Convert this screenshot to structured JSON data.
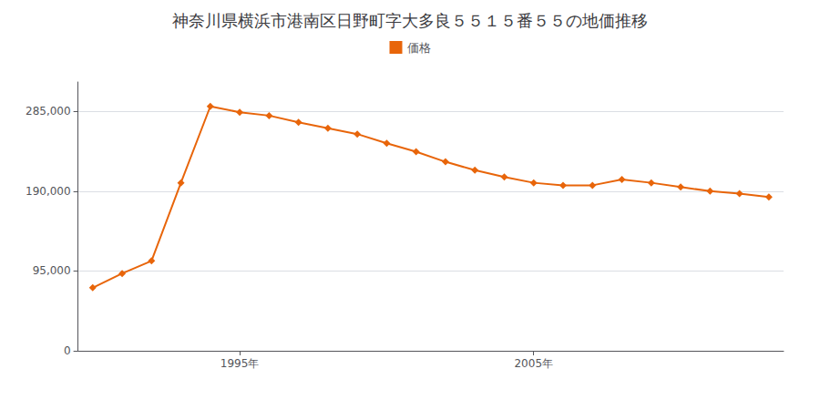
{
  "chart_data": {
    "type": "line",
    "title": "神奈川県横浜市港南区日野町字大多良５５１５番５５の地価推移",
    "x": [
      1990,
      1991,
      1992,
      1993,
      1994,
      1995,
      1996,
      1997,
      1998,
      1999,
      2000,
      2001,
      2002,
      2003,
      2004,
      2005,
      2006,
      2007,
      2008,
      2009,
      2010,
      2011,
      2012,
      2013
    ],
    "series": [
      {
        "name": "価格",
        "color": "#E8650A",
        "marker": "diamond",
        "values": [
          75000,
          92000,
          107000,
          200000,
          291000,
          284000,
          280000,
          272000,
          265000,
          258000,
          247000,
          237000,
          225000,
          215000,
          207000,
          200000,
          197000,
          197000,
          204000,
          200000,
          195000,
          190000,
          187000,
          183000
        ]
      }
    ],
    "xlim": [
      1989.5,
      2013.5
    ],
    "xticks": [
      {
        "value": 1995,
        "label": "1995年"
      },
      {
        "value": 2005,
        "label": "2005年"
      }
    ],
    "ylim": [
      0,
      320000
    ],
    "yticks": [
      0,
      {
        "value": 95000,
        "label": "95,000"
      },
      {
        "value": 190000,
        "label": "190,000"
      },
      {
        "value": 285000,
        "label": "285,000"
      }
    ],
    "grid": "y",
    "legend": "top"
  }
}
